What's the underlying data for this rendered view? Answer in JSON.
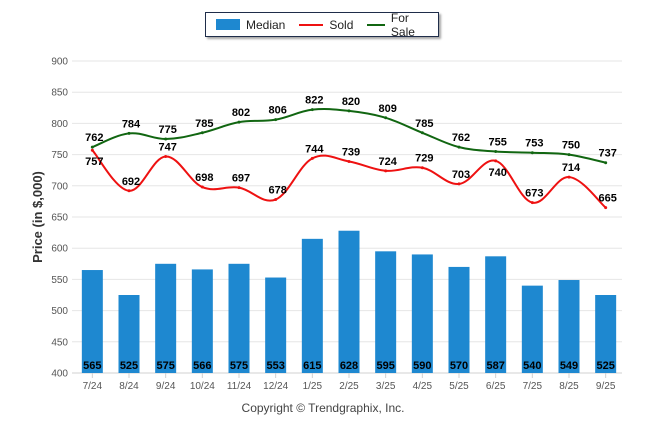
{
  "chart_data": {
    "type": "bar+line",
    "title": "",
    "xlabel": "",
    "ylabel": "Price (in $,000)",
    "ylim": [
      400,
      900
    ],
    "yticks": [
      400,
      450,
      500,
      550,
      600,
      650,
      700,
      750,
      800,
      850,
      900
    ],
    "grid": true,
    "legend_position": "top-center",
    "categories": [
      "7/24",
      "8/24",
      "9/24",
      "10/24",
      "11/24",
      "12/24",
      "1/25",
      "2/25",
      "3/25",
      "4/25",
      "5/25",
      "6/25",
      "7/25",
      "8/25",
      "9/25"
    ],
    "series": [
      {
        "name": "Median",
        "type": "bar",
        "color": "#1e88d0",
        "values": [
          565,
          525,
          575,
          566,
          575,
          553,
          615,
          628,
          595,
          590,
          570,
          587,
          540,
          549,
          525
        ]
      },
      {
        "name": "Sold",
        "type": "line",
        "color": "#ee1111",
        "values": [
          757,
          692,
          747,
          698,
          697,
          678,
          744,
          739,
          724,
          729,
          703,
          740,
          673,
          714,
          665
        ]
      },
      {
        "name": "For Sale",
        "type": "line",
        "color": "#116611",
        "values": [
          762,
          784,
          775,
          785,
          802,
          806,
          822,
          820,
          809,
          785,
          762,
          755,
          753,
          750,
          737
        ]
      }
    ]
  },
  "legend": {
    "items": [
      {
        "label": "Median",
        "color": "#1e88d0",
        "kind": "bar"
      },
      {
        "label": "Sold",
        "color": "#ee1111",
        "kind": "line"
      },
      {
        "label": "For Sale",
        "color": "#116611",
        "kind": "line"
      }
    ]
  },
  "footer": {
    "copyright": "Copyright © Trendgraphix, Inc."
  }
}
